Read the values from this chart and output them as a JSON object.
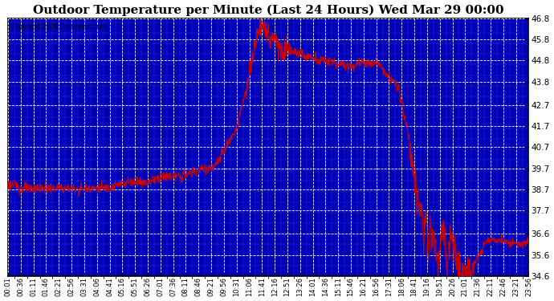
{
  "title": "Outdoor Temperature per Minute (Last 24 Hours) Wed Mar 29 00:00",
  "copyright": "Copyright 2006 Curtronics.com",
  "line_color": "#cc0000",
  "ymin": 34.6,
  "ymax": 46.8,
  "yticks": [
    34.6,
    35.6,
    36.6,
    37.7,
    38.7,
    39.7,
    40.7,
    41.7,
    42.7,
    43.8,
    44.8,
    45.8,
    46.8
  ],
  "title_fontsize": 11,
  "plot_bg_color": "#0000bb",
  "fig_bg_color": "#ffffff",
  "grid_color": "#ffffff",
  "xtick_labels": [
    "00:01",
    "00:36",
    "01:11",
    "01:46",
    "02:21",
    "02:56",
    "03:31",
    "04:06",
    "04:41",
    "05:16",
    "05:51",
    "06:26",
    "07:01",
    "07:36",
    "08:11",
    "08:46",
    "09:21",
    "09:56",
    "10:31",
    "11:06",
    "11:41",
    "12:16",
    "12:51",
    "13:26",
    "14:01",
    "14:36",
    "15:11",
    "15:46",
    "16:21",
    "16:56",
    "17:31",
    "18:06",
    "18:41",
    "19:16",
    "19:51",
    "20:26",
    "21:01",
    "21:36",
    "22:11",
    "22:46",
    "23:21",
    "23:56"
  ]
}
